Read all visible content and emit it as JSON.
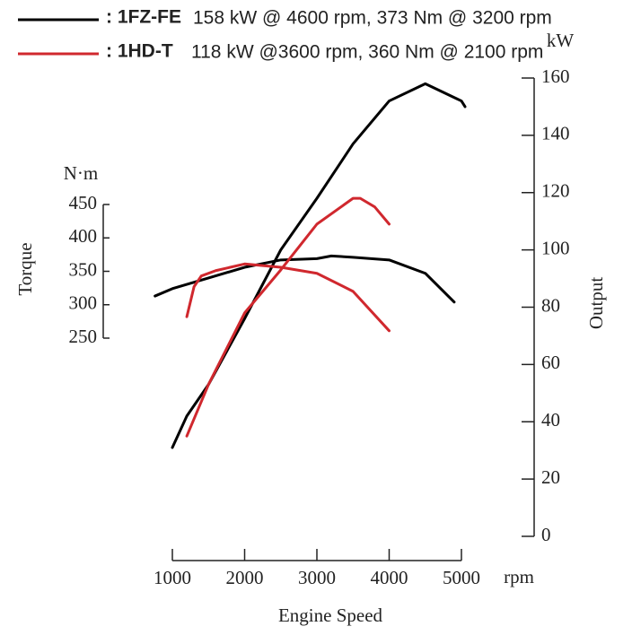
{
  "chart_data": {
    "type": "line",
    "engines": [
      {
        "name": ": 1FZ-FE",
        "spec": "158 kW @ 4600 rpm, 373 Nm @ 3200 rpm",
        "color": "#000000",
        "torque_x": [
          760,
          1000,
          1500,
          2000,
          2500,
          3000,
          3200,
          3500,
          4000,
          4500,
          4900
        ],
        "torque": [
          313,
          324,
          340,
          356,
          367,
          369,
          373,
          371,
          367,
          347,
          304
        ],
        "power_x": [
          1000,
          1200,
          1500,
          2000,
          2500,
          3000,
          3500,
          4000,
          4500,
          5000,
          5050
        ],
        "power": [
          31,
          42,
          53,
          76,
          100,
          118,
          137,
          152,
          158,
          152,
          150
        ]
      },
      {
        "name": ": 1HD-T",
        "spec": "118 kW @3600 rpm, 360 Nm @ 2100 rpm",
        "color": "#d0282e",
        "torque_x": [
          1200,
          1300,
          1400,
          1600,
          2000,
          2500,
          3000,
          3500,
          4000
        ],
        "torque": [
          282,
          327,
          343,
          351,
          361,
          356,
          347,
          320,
          261
        ],
        "power_x": [
          1200,
          1500,
          2000,
          2500,
          3000,
          3500,
          3600,
          3800,
          4000
        ],
        "power": [
          35,
          53,
          78,
          93,
          109,
          118,
          118,
          115,
          109
        ]
      }
    ],
    "x_label": "Engine Speed",
    "x_unit": "rpm",
    "xlim": [
      1000,
      5000
    ],
    "xticks": [
      1000,
      2000,
      3000,
      4000,
      5000
    ],
    "y_label": "Torque",
    "y_unit": "N·m",
    "ylim": [
      250,
      450
    ],
    "yticks": [
      250,
      300,
      350,
      400,
      450
    ],
    "y2_label": "Output",
    "y2_unit": "kW",
    "y2lim": [
      0,
      160
    ],
    "y2ticks": [
      0,
      20,
      40,
      60,
      80,
      100,
      120,
      140,
      160
    ]
  }
}
